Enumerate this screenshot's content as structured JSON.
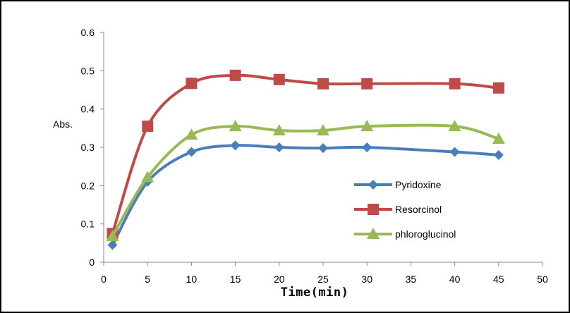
{
  "chart_data": {
    "type": "line",
    "title": "",
    "xlabel": "Time(min)",
    "ylabel": "Abs.",
    "xlim": [
      0,
      50
    ],
    "ylim": [
      0,
      0.6
    ],
    "xticks": [
      0,
      5,
      10,
      15,
      20,
      25,
      30,
      35,
      40,
      45,
      50
    ],
    "yticks": [
      0,
      0.1,
      0.2,
      0.3,
      0.4,
      0.5,
      0.6
    ],
    "x": [
      1,
      5,
      10,
      15,
      20,
      25,
      30,
      40,
      45
    ],
    "grid": false,
    "legend_position": "right",
    "series": [
      {
        "name": "Pyridoxine",
        "marker": "diamond",
        "color": "#4a7ebb",
        "values": [
          0.045,
          0.21,
          0.288,
          0.305,
          0.3,
          0.298,
          0.3,
          0.288,
          0.28
        ]
      },
      {
        "name": "Resorcinol",
        "marker": "square",
        "color": "#be4b48",
        "values": [
          0.075,
          0.355,
          0.467,
          0.488,
          0.477,
          0.466,
          0.466,
          0.466,
          0.455
        ]
      },
      {
        "name": "phloroglucinol",
        "marker": "triangle",
        "color": "#98b954",
        "values": [
          0.068,
          0.222,
          0.333,
          0.355,
          0.344,
          0.344,
          0.355,
          0.355,
          0.322
        ]
      }
    ]
  }
}
